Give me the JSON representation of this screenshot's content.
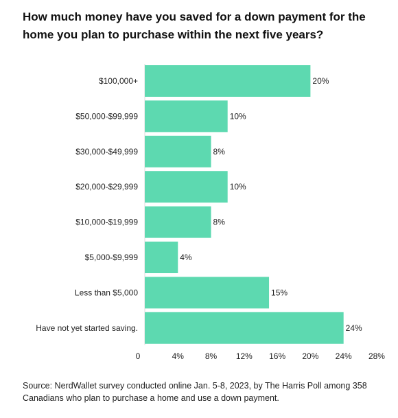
{
  "chart_data": {
    "type": "bar",
    "orientation": "horizontal",
    "title": "How much money have you saved for a down payment for the home you plan to purchase within the next five years?",
    "categories": [
      "$100,000+",
      "$50,000-$99,999",
      "$30,000-$49,999",
      "$20,000-$29,999",
      "$10,000-$19,999",
      "$5,000-$9,999",
      "Less than $5,000",
      "Have not yet started saving."
    ],
    "values": [
      20,
      10,
      8,
      10,
      8,
      4,
      15,
      24
    ],
    "value_labels": [
      "20%",
      "10%",
      "8%",
      "10%",
      "8%",
      "4%",
      "15%",
      "24%"
    ],
    "xlim": [
      0,
      28
    ],
    "x_ticks": [
      0,
      4,
      8,
      12,
      16,
      20,
      24,
      28
    ],
    "x_tick_labels": [
      "0",
      "4%",
      "8%",
      "12%",
      "16%",
      "20%",
      "24%",
      "28%"
    ],
    "xlabel": "",
    "ylabel": "",
    "grid": false,
    "bar_color": "#5dd9b0",
    "source": "Source: NerdWallet survey conducted online Jan. 5-8, 2023, by The Harris Poll among 358 Canadians who plan to purchase a home and use a down payment."
  }
}
